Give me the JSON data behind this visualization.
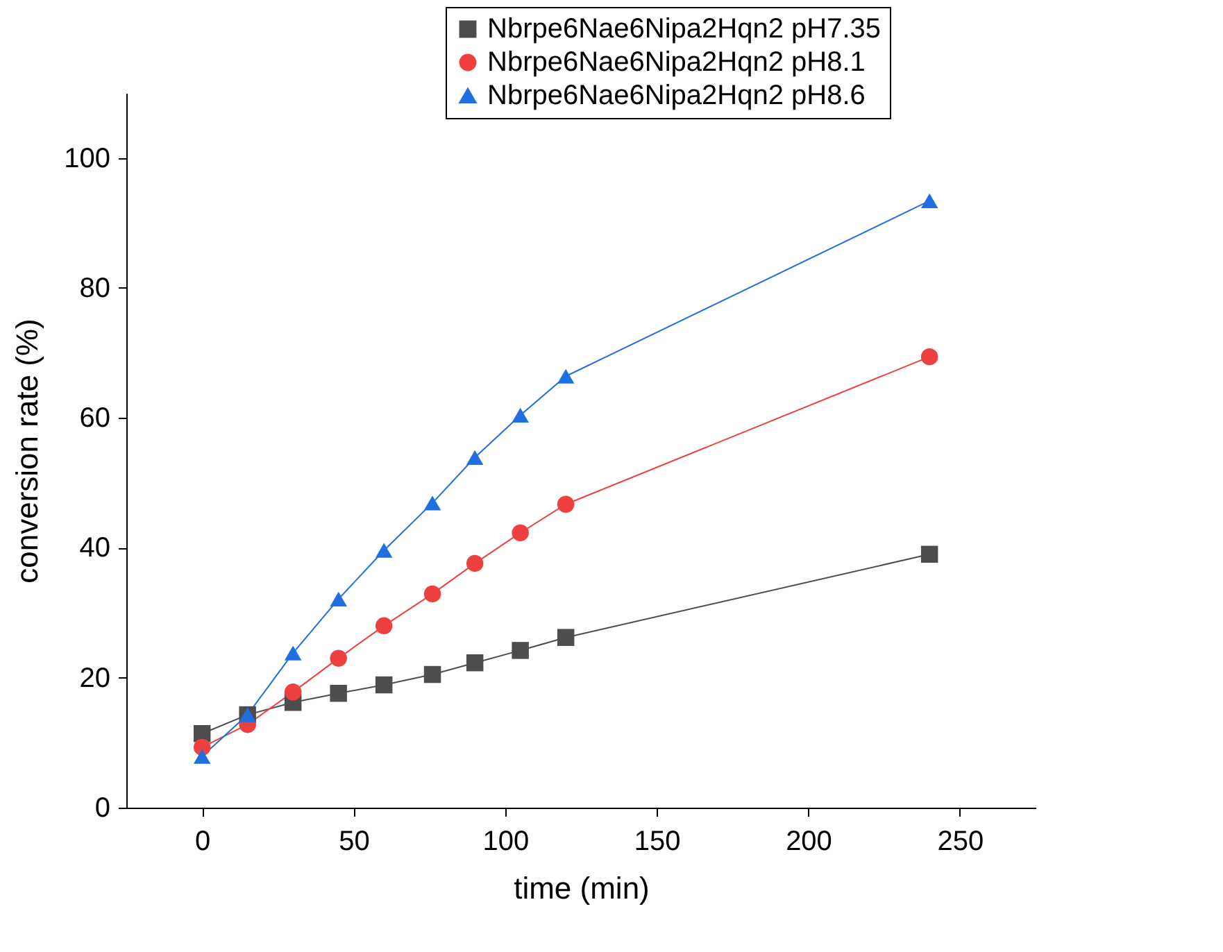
{
  "chart_data": {
    "type": "line",
    "xlabel": "time (min)",
    "ylabel": "conversion rate (%)",
    "x": [
      0,
      15,
      30,
      45,
      60,
      76,
      90,
      105,
      120,
      240
    ],
    "xlim": [
      -25,
      275
    ],
    "xticks": [
      0,
      50,
      100,
      150,
      200,
      250
    ],
    "ylim": [
      0,
      110
    ],
    "yticks": [
      0,
      20,
      40,
      60,
      80,
      100
    ],
    "grid": false,
    "legend": "top right",
    "line_style": "solid",
    "series": [
      {
        "name": "Nbrpe6Nae6Nipa2Hqn2 pH7.35",
        "color": "#4d4d4d",
        "marker": "square",
        "values": [
          11.4,
          14.3,
          16.2,
          17.6,
          18.9,
          20.5,
          22.3,
          24.2,
          26.2,
          39.0
        ]
      },
      {
        "name": "Nbrpe6Nae6Nipa2Hqn2 pH8.1",
        "color": "#ef4040",
        "marker": "circle",
        "values": [
          9.3,
          12.8,
          17.8,
          23.0,
          28.0,
          32.9,
          37.6,
          42.3,
          46.7,
          69.4
        ]
      },
      {
        "name": "Nbrpe6Nae6Nipa2Hqn2 pH8.6",
        "color": "#1f6fe0",
        "marker": "triangle",
        "values": [
          7.9,
          14.3,
          23.8,
          32.1,
          39.6,
          46.9,
          53.9,
          60.4,
          66.4,
          93.4
        ]
      }
    ]
  }
}
